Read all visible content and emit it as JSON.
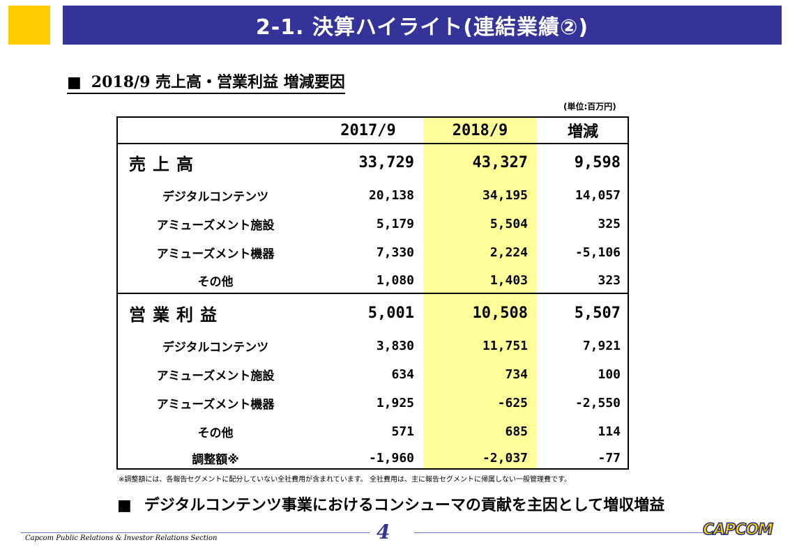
{
  "header": {
    "title": "2-1. 決算ハイライト(連結業績②)"
  },
  "subtitle": {
    "marker": "■",
    "text": "2018/9 売上高・営業利益 増減要因"
  },
  "unit_note": "(単位:百万円)",
  "table": {
    "columns": [
      "2017/9",
      "2018/9",
      "増減"
    ],
    "rows": [
      {
        "label": "売上高",
        "a": "33,729",
        "b": "43,327",
        "c": "9,598"
      },
      {
        "label": "デジタルコンテンツ",
        "a": "20,138",
        "b": "34,195",
        "c": "14,057"
      },
      {
        "label": "アミューズメント施設",
        "a": "5,179",
        "b": "5,504",
        "c": "325"
      },
      {
        "label": "アミューズメント機器",
        "a": "7,330",
        "b": "2,224",
        "c": "-5,106"
      },
      {
        "label": "その他",
        "a": "1,080",
        "b": "1,403",
        "c": "323"
      },
      {
        "label": "営業利益",
        "a": "5,001",
        "b": "10,508",
        "c": "5,507"
      },
      {
        "label": "デジタルコンテンツ",
        "a": "3,830",
        "b": "11,751",
        "c": "7,921"
      },
      {
        "label": "アミューズメント施設",
        "a": "634",
        "b": "734",
        "c": "100"
      },
      {
        "label": "アミューズメント機器",
        "a": "1,925",
        "b": "-625",
        "c": "-2,550"
      },
      {
        "label": "その他",
        "a": "571",
        "b": "685",
        "c": "114"
      },
      {
        "label": "調整額※",
        "a": "-1,960",
        "b": "-2,037",
        "c": "-77"
      }
    ]
  },
  "footnote": "※調整額には、各報告セグメントに配分していない全社費用が含まれています。 全社費用は、主に報告セグメントに帰属しない一般管理費です。",
  "conclusion": {
    "marker": "■",
    "text": "デジタルコンテンツ事業におけるコンシューマの貢献を主因として増収増益"
  },
  "footer": {
    "section": "Capcom Public Relations & Investor Relations Section",
    "page": "4",
    "logo": "CAPCOM"
  },
  "colors": {
    "title_bar": "#333399",
    "corner": "#ffcc00",
    "highlight": "#ffff99"
  }
}
